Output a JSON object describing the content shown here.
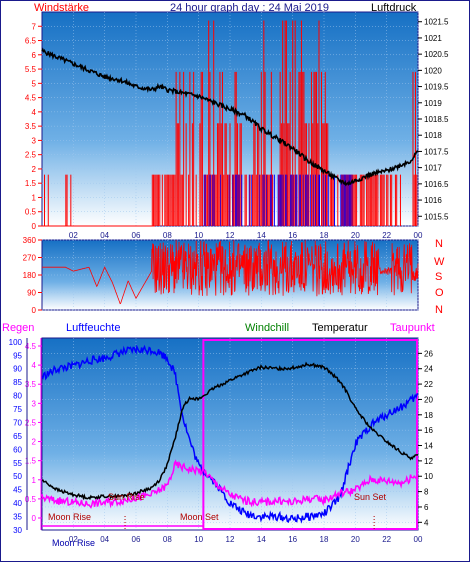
{
  "header": {
    "windstaerke": "Windstärke",
    "title": "24 hour graph day : 24 Mai 2019",
    "luftdruck": "Luftdruck"
  },
  "labels": {
    "regen": "Regen",
    "luftfeuchte": "Luftfeuchte",
    "windchill": "Windchill",
    "temperatur": "Temperatur",
    "taupunkt": "Taupunkt",
    "moonrise_a": "Moon Rise",
    "moonset": "Moon Set",
    "sunrise": "Sun Rise",
    "sunset": "Sun Set",
    "moonrise_b": "Moon Rise"
  },
  "compass": [
    "N",
    "W",
    "S",
    "O",
    "N"
  ],
  "colors": {
    "frame": "#1a1a8c",
    "wind": "#ff0000",
    "gust": "#0000ff",
    "pressure": "#000000",
    "temperature": "#000000",
    "humidity": "#0000ff",
    "dewpoint": "#ff00ff",
    "windchill": "#008000",
    "moon": "#ff00ff",
    "sky_top": "#1874c9",
    "sky_bottom": "#ffffff"
  },
  "chart_data": [
    {
      "type": "line",
      "name": "wind-pressure",
      "x_ticks": [
        "02",
        "04",
        "06",
        "08",
        "10",
        "12",
        "14",
        "16",
        "18",
        "20",
        "22",
        "00"
      ],
      "y_left_ticks": [
        "0",
        "0.5",
        "1",
        "1.5",
        "2",
        "2.5",
        "3",
        "3.5",
        "4",
        "4.5",
        "5",
        "5.5",
        "6",
        "6.5",
        "7"
      ],
      "y_left_range": [
        0,
        7.5
      ],
      "y_right_ticks": [
        "1015.5",
        "1016",
        "1016.5",
        "1017",
        "1017.5",
        "1018",
        "1018.5",
        "1019",
        "1019.5",
        "1020",
        "1020.5",
        "1021",
        "1021.5"
      ],
      "y_right_range": [
        1015.2,
        1021.8
      ],
      "pressure": {
        "x": [
          0,
          1,
          2,
          3,
          4,
          5,
          6,
          7,
          7.5,
          8,
          9,
          10,
          11,
          12,
          13,
          14,
          15,
          16,
          17,
          18,
          19,
          19.5,
          20,
          21,
          22,
          23,
          23.5,
          24
        ],
        "y": [
          1020.6,
          1020.4,
          1020.2,
          1020.0,
          1019.8,
          1019.7,
          1019.5,
          1019.4,
          1019.5,
          1019.4,
          1019.3,
          1019.2,
          1019.0,
          1018.8,
          1018.6,
          1018.2,
          1017.9,
          1017.6,
          1017.2,
          1016.9,
          1016.6,
          1016.5,
          1016.6,
          1016.8,
          1016.9,
          1017.1,
          1017.2,
          1017.5
        ]
      }
    },
    {
      "type": "line",
      "name": "wind-direction",
      "y_ticks": [
        "0",
        "90",
        "180",
        "270",
        "360"
      ],
      "y_range": [
        0,
        360
      ],
      "direction": {
        "x": [
          0,
          1.5,
          2,
          3,
          3.5,
          4,
          4.5,
          5,
          5.5,
          6,
          7
        ],
        "y": [
          220,
          220,
          200,
          220,
          120,
          220,
          140,
          30,
          150,
          60,
          200
        ]
      }
    },
    {
      "type": "line",
      "name": "temperature-humidity",
      "x_ticks": [
        "02",
        "04",
        "06",
        "08",
        "10",
        "12",
        "14",
        "16",
        "18",
        "20",
        "22",
        "00"
      ],
      "y_left_regen_ticks": [
        "0",
        "0.5",
        "1",
        "1.5",
        "2",
        "2.5",
        "3",
        "3.5",
        "4",
        "4.5"
      ],
      "y_left_hum_ticks": [
        "30",
        "35",
        "40",
        "45",
        "50",
        "55",
        "60",
        "65",
        "70",
        "75",
        "80",
        "85",
        "90",
        "95",
        "100"
      ],
      "y_right_ticks": [
        "4",
        "6",
        "8",
        "10",
        "12",
        "14",
        "16",
        "18",
        "20",
        "22",
        "24",
        "26"
      ],
      "y_right_range": [
        3,
        28
      ],
      "hum_range": [
        30,
        100
      ],
      "temperature": {
        "x": [
          0,
          1,
          2,
          3,
          4,
          5,
          6,
          7,
          7.5,
          8,
          8.5,
          9,
          9.5,
          10,
          11,
          12,
          13,
          14,
          15,
          16,
          17,
          18,
          19,
          19.5,
          20,
          21,
          22,
          23,
          23.5,
          24
        ],
        "y": [
          9.5,
          8.2,
          7.6,
          7.2,
          7.4,
          7.4,
          7.8,
          8.5,
          9.5,
          11.5,
          15,
          19,
          20.3,
          20,
          21.5,
          22.5,
          23.4,
          24.2,
          24.0,
          24.1,
          24.6,
          24.2,
          22.4,
          20.8,
          18.8,
          16.2,
          14.5,
          13,
          12.4,
          12.7
        ]
      },
      "humidity": {
        "x": [
          0,
          1,
          2,
          3,
          4,
          5,
          6,
          7,
          7.5,
          8,
          8.5,
          9,
          9.5,
          10,
          10.5,
          11,
          12,
          13,
          14,
          15,
          16,
          17,
          18,
          19,
          19.5,
          20,
          21,
          22,
          23,
          24
        ],
        "y": [
          87,
          90,
          91,
          93,
          94,
          96,
          97,
          97,
          96,
          94,
          88,
          72,
          62,
          54,
          51,
          48,
          40,
          36,
          35,
          35,
          34,
          35,
          36,
          42,
          52,
          62,
          69,
          73,
          76,
          80
        ]
      },
      "dewpoint": {
        "x": [
          0,
          1,
          2,
          3,
          4,
          5,
          6,
          7,
          8,
          8.5,
          9,
          9.5,
          10,
          10.5,
          11,
          12,
          13,
          14,
          15,
          16,
          17,
          18,
          19,
          20,
          21,
          22,
          23,
          24
        ],
        "y": [
          7.2,
          6.8,
          6.6,
          6.4,
          6.6,
          6.8,
          7.2,
          7.6,
          8.8,
          11.5,
          11.2,
          10.9,
          10.8,
          10.4,
          9.2,
          7.6,
          6.8,
          6.6,
          6.8,
          6.6,
          7.1,
          6.9,
          7.8,
          8.2,
          9.6,
          9.4,
          9.2,
          10.2
        ]
      }
    }
  ]
}
